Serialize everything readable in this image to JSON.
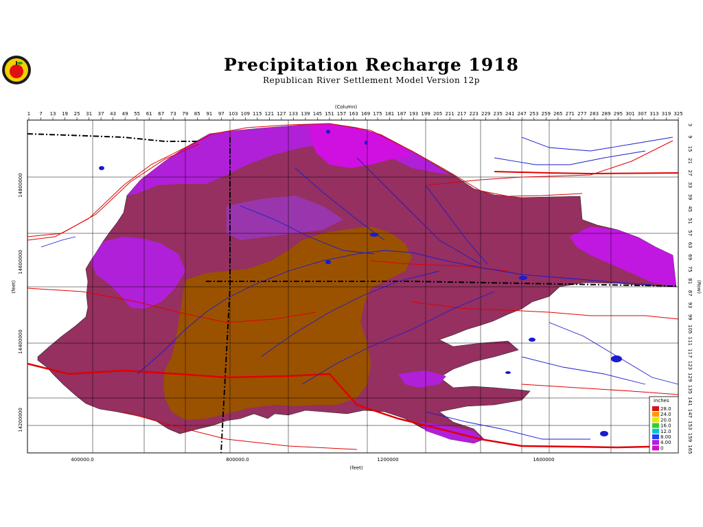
{
  "header": {
    "title": "Precipitation Recharge 1918",
    "subtitle": "Republican River Settlement Model Version 12p"
  },
  "logo": {
    "icon": "apple-logo-icon",
    "colors": [
      "#1a1a1a",
      "#e01010",
      "#f2d000"
    ]
  },
  "axes": {
    "top_label": "(Column)",
    "bottom_label": "(feet)",
    "left_label": "(feet)",
    "right_label": "(Row)",
    "column_ticks": [
      "1",
      "7",
      "13",
      "19",
      "25",
      "31",
      "37",
      "43",
      "49",
      "55",
      "61",
      "67",
      "73",
      "79",
      "85",
      "91",
      "97",
      "103",
      "109",
      "115",
      "121",
      "127",
      "133",
      "139",
      "145",
      "151",
      "157",
      "163",
      "169",
      "175",
      "181",
      "187",
      "193",
      "199",
      "205",
      "211",
      "217",
      "223",
      "229",
      "235",
      "241",
      "247",
      "253",
      "259",
      "265",
      "271",
      "277",
      "283",
      "289",
      "295",
      "301",
      "307",
      "313",
      "319",
      "325"
    ],
    "row_ticks": [
      "3",
      "9",
      "15",
      "21",
      "27",
      "33",
      "39",
      "45",
      "51",
      "57",
      "63",
      "69",
      "75",
      "81",
      "87",
      "93",
      "99",
      "105",
      "111",
      "117",
      "123",
      "129",
      "135",
      "141",
      "147",
      "153",
      "159",
      "165"
    ],
    "x_ticks": [
      "400000.0",
      "800000.0",
      "1200000",
      "1600000"
    ],
    "y_ticks": [
      "14800000",
      "14600000",
      "14400000",
      "14200000"
    ]
  },
  "legend": {
    "title": "inches",
    "entries": [
      {
        "label": "28.0",
        "color": "#e01010"
      },
      {
        "label": "24.0",
        "color": "#ff9a00"
      },
      {
        "label": "20.0",
        "color": "#f2e400"
      },
      {
        "label": "16.0",
        "color": "#2fd02f"
      },
      {
        "label": "12.0",
        "color": "#00c8c8"
      },
      {
        "label": "8.00",
        "color": "#1f3fff"
      },
      {
        "label": "4.00",
        "color": "#b020e0"
      },
      {
        "label": "0",
        "color": "#cc10cc"
      }
    ]
  },
  "map_colors": {
    "maroon": "#953060",
    "brown": "#9a5200",
    "purple": "#b020d8",
    "magenta": "#d010e0",
    "river": "#1a1ad0",
    "road": "#e00000",
    "boundary": "#000000"
  }
}
